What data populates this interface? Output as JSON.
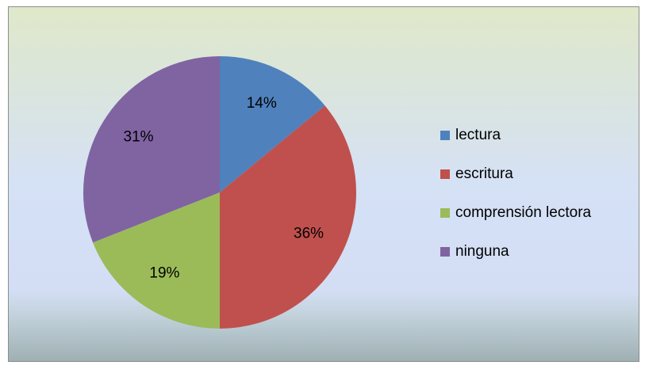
{
  "chart_data": {
    "type": "pie",
    "categories": [
      "lectura",
      "escritura",
      "comprensión lectora",
      "ninguna"
    ],
    "values": [
      14,
      36,
      19,
      31
    ],
    "value_labels": [
      "14%",
      "36%",
      "19%",
      "31%"
    ],
    "colors": [
      "#4f81bd",
      "#c0504d",
      "#9bbb59",
      "#8064a2"
    ],
    "legend": "right"
  }
}
